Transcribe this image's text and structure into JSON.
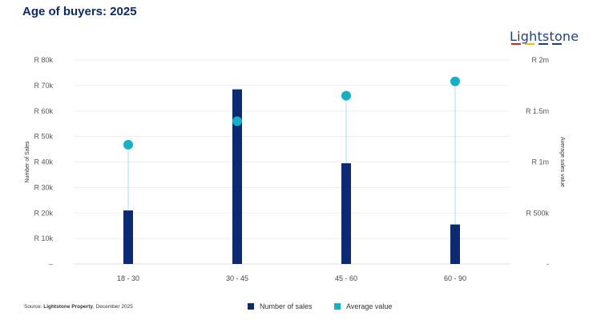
{
  "page": {
    "title": "Age of buyers: 2025",
    "brand": "Lightstone",
    "brand_colors": [
      "#d5202a",
      "#f5b700",
      "#1f3f86",
      "#1f3f86"
    ],
    "source_prefix": "Source: ",
    "source_org": "Lightstone Property",
    "source_suffix": ", December 2025"
  },
  "chart_data": {
    "type": "bar",
    "categories": [
      "18 - 30",
      "30 - 45",
      "45 - 60",
      "60 - 90"
    ],
    "series": [
      {
        "name": "Number of sales",
        "type": "bar",
        "axis": "left",
        "color": "#0b2a73",
        "values": [
          21000,
          68500,
          39500,
          15500
        ]
      },
      {
        "name": "Average value",
        "type": "scatter",
        "axis": "right",
        "color": "#15b0c8",
        "values": [
          1170000,
          1400000,
          1650000,
          1790000
        ]
      }
    ],
    "ylabel": "Number of Sales",
    "y2label": "Average sales value",
    "ylim": [
      0,
      80000
    ],
    "y2lim": [
      0,
      2000000
    ],
    "y_ticks": [
      0,
      10000,
      20000,
      30000,
      40000,
      50000,
      60000,
      70000,
      80000
    ],
    "y_tick_labels": [
      "–",
      "R 10k",
      "R 20k",
      "R 30k",
      "R 40k",
      "R 50k",
      "R 60k",
      "R 70k",
      "R 80k"
    ],
    "y2_ticks": [
      0,
      500000,
      1000000,
      1500000,
      2000000
    ],
    "y2_tick_labels": [
      "-",
      "R 500k",
      "R 1m",
      "R 1.5m",
      "R 2m"
    ],
    "grid": true,
    "legend": "bottom"
  }
}
